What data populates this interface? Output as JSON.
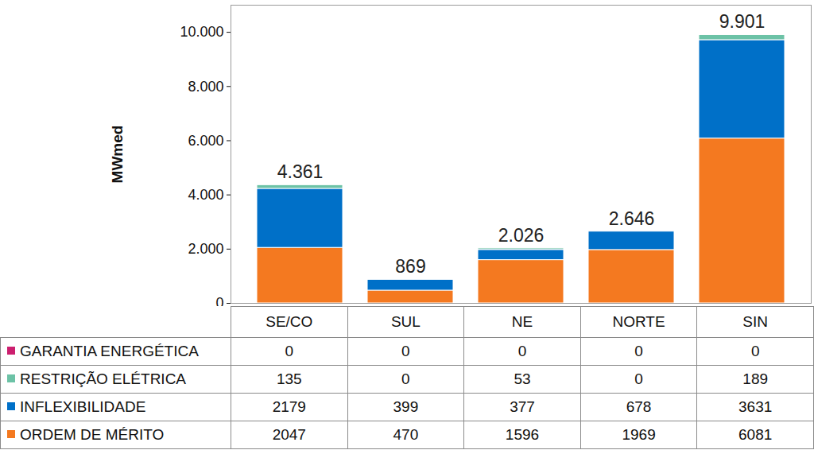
{
  "chart_data": {
    "type": "bar",
    "stacked": true,
    "categories": [
      "SE/CO",
      "SUL",
      "NE",
      "NORTE",
      "SIN"
    ],
    "series": [
      {
        "name": "ORDEM DE MÉRITO",
        "color": "#f47920",
        "values": [
          2047,
          470,
          1596,
          1969,
          6081
        ]
      },
      {
        "name": "INFLEXIBILIDADE",
        "color": "#0070c8",
        "values": [
          2179,
          399,
          377,
          678,
          3631
        ]
      },
      {
        "name": "RESTRIÇÃO ELÉTRICA",
        "color": "#6cc2a6",
        "values": [
          135,
          0,
          53,
          0,
          189
        ]
      },
      {
        "name": "GARANTIA ENERGÉTICA",
        "color": "#cc1f6f",
        "values": [
          0,
          0,
          0,
          0,
          0
        ]
      }
    ],
    "totals": [
      4361,
      869,
      2026,
      2646,
      9901
    ],
    "total_labels": [
      "4.361",
      "869",
      "2.026",
      "2.646",
      "9.901"
    ],
    "y_label": "MWmed",
    "ylim": [
      0,
      11000
    ],
    "yticks": [
      0,
      {
        "value": 2000,
        "label": "2.000"
      },
      {
        "value": 4000,
        "label": "4.000"
      },
      {
        "value": 6000,
        "label": "6.000"
      },
      {
        "value": 8000,
        "label": "8.000"
      },
      {
        "value": 10000,
        "label": "10.000"
      }
    ],
    "grid": false
  }
}
